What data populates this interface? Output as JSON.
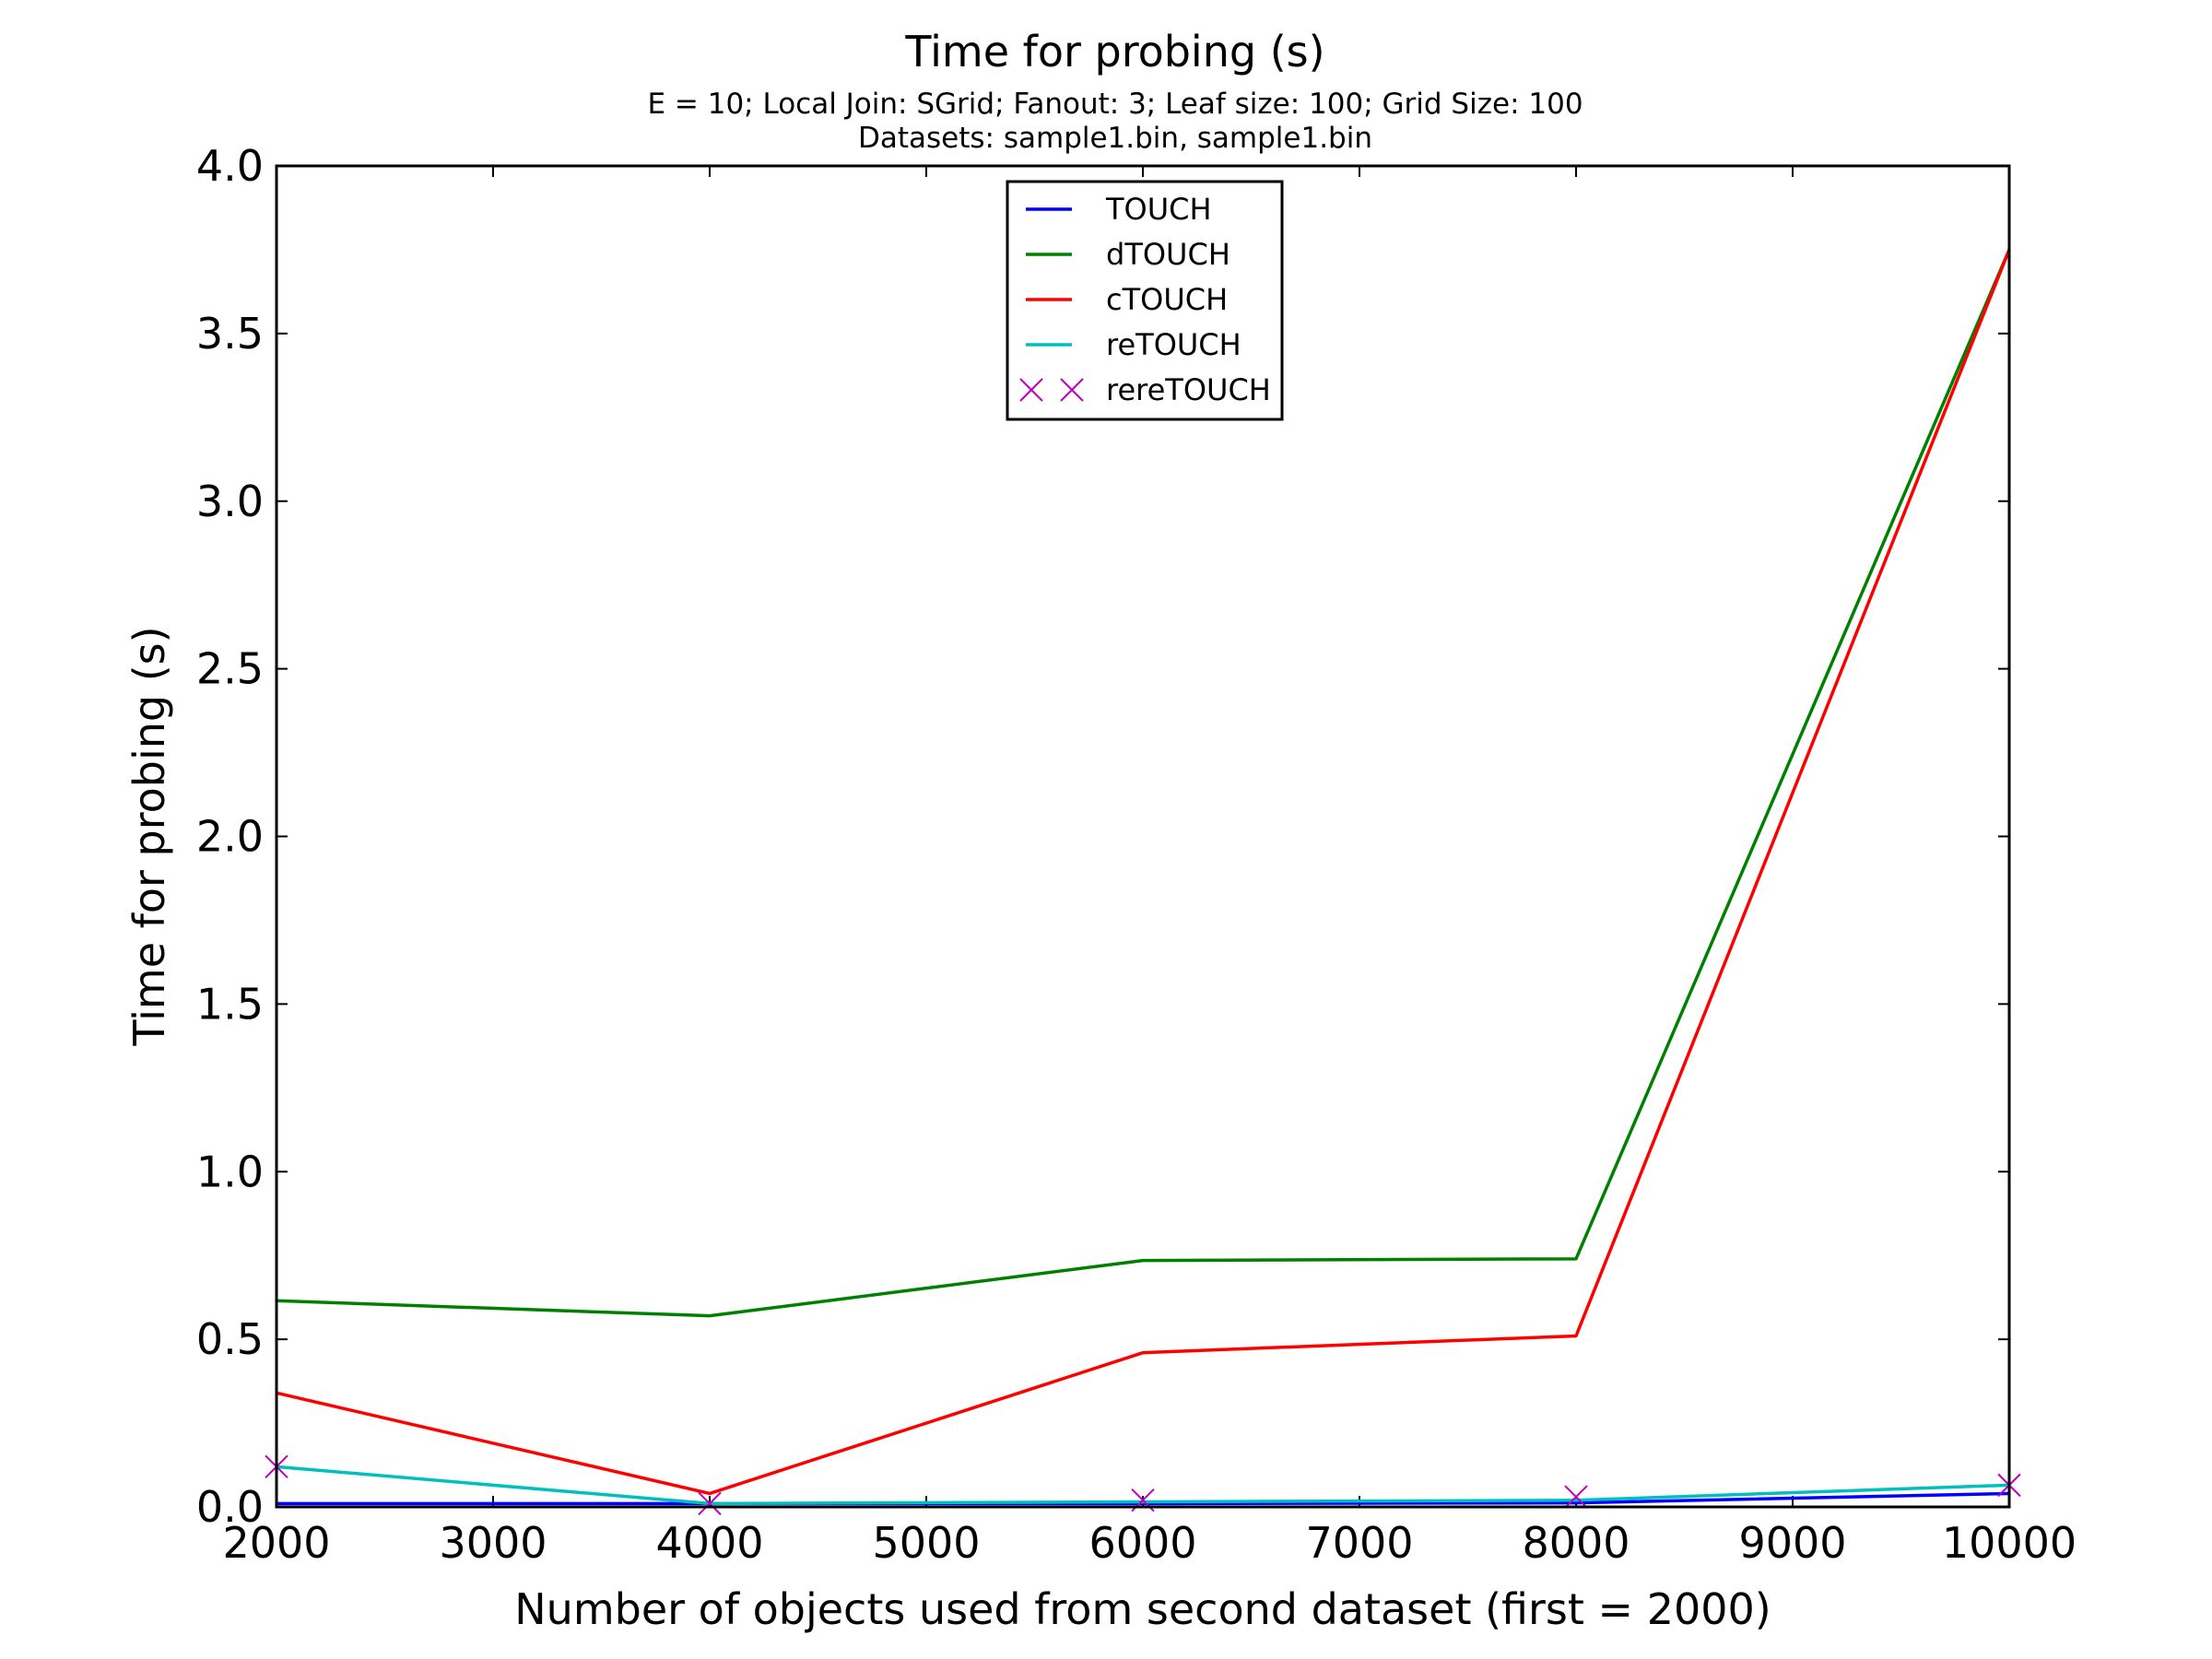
{
  "chart_data": {
    "type": "line",
    "title": "Time for probing (s)",
    "subtitle": "E = 10; Local Join: SGrid; Fanout: 3; Leaf size: 100; Grid Size: 100",
    "subtitle2": "Datasets: sample1.bin, sample1.bin",
    "xlabel": "Number of objects used from second dataset (first = 2000)",
    "ylabel": "Time for probing (s)",
    "xlim": [
      2000,
      10000
    ],
    "ylim": [
      0,
      4.0
    ],
    "xticks": [
      2000,
      3000,
      4000,
      5000,
      6000,
      7000,
      8000,
      9000,
      10000
    ],
    "xtick_labels": [
      "2000",
      "3000",
      "4000",
      "5000",
      "6000",
      "7000",
      "8000",
      "9000",
      "10000"
    ],
    "yticks": [
      0,
      0.5,
      1.0,
      1.5,
      2.0,
      2.5,
      3.0,
      3.5,
      4.0
    ],
    "ytick_labels": [
      "0.0",
      "0.5",
      "1.0",
      "1.5",
      "2.0",
      "2.5",
      "3.0",
      "3.5",
      "4.0"
    ],
    "x": [
      2000,
      4000,
      6000,
      8000,
      10000
    ],
    "grid": false,
    "legend_position": "upper-center",
    "series": [
      {
        "name": "TOUCH",
        "color": "#0000ff",
        "style": "line",
        "values": [
          0.01,
          0.01,
          0.01,
          0.012,
          0.04
        ]
      },
      {
        "name": "dTOUCH",
        "color": "#008000",
        "style": "line",
        "values": [
          0.615,
          0.57,
          0.735,
          0.74,
          3.75
        ]
      },
      {
        "name": "cTOUCH",
        "color": "#ff0000",
        "style": "line",
        "values": [
          0.34,
          0.04,
          0.46,
          0.51,
          3.75
        ]
      },
      {
        "name": "reTOUCH",
        "color": "#00bfbf",
        "style": "line",
        "values": [
          0.12,
          0.01,
          0.015,
          0.02,
          0.065
        ]
      },
      {
        "name": "rereTOUCH",
        "color": "#bf00bf",
        "style": "x-marker",
        "values": [
          0.12,
          0.01,
          0.02,
          0.03,
          0.065
        ]
      }
    ]
  }
}
